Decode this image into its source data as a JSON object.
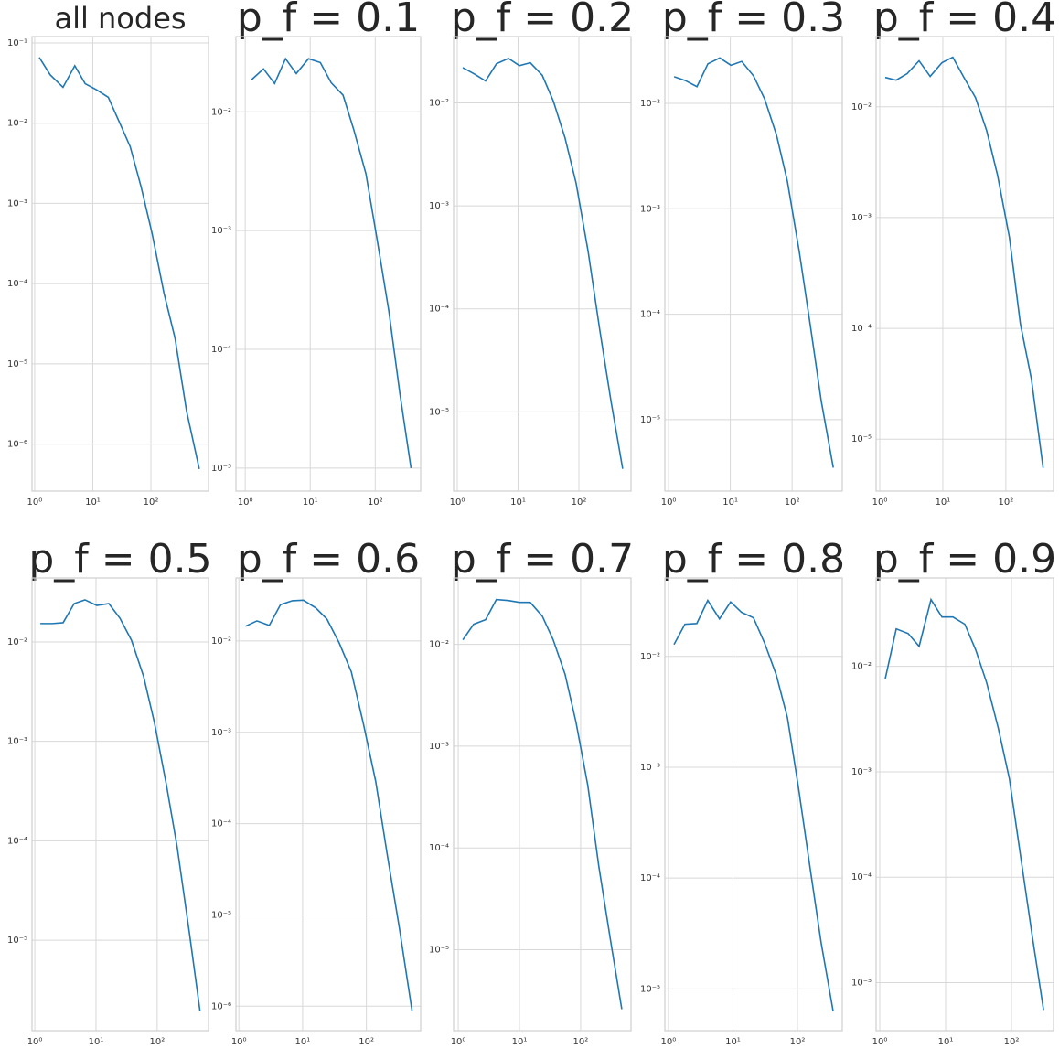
{
  "chart_data": [
    {
      "type": "line",
      "title": "all nodes",
      "xscale": "log",
      "yscale": "log",
      "grid": true,
      "color": "#1f77b4",
      "x": [
        1.2,
        1.85,
        3.07,
        4.9,
        7.4,
        11.7,
        18.5,
        28,
        44,
        68,
        105,
        168,
        260,
        410,
        680
      ],
      "values": [
        0.066,
        0.04,
        0.028,
        0.052,
        0.031,
        0.026,
        0.021,
        0.0107,
        0.0051,
        0.0016,
        0.00042,
        7.6e-05,
        2.1e-05,
        2.6e-06,
        4.9e-07
      ],
      "xlim": [
        0.9,
        980
      ],
      "ylim": [
        0.12,
        2.6e-07
      ],
      "xticks": [
        {
          "value": 1,
          "label": "10⁰"
        },
        {
          "value": 10,
          "label": "10¹"
        },
        {
          "value": 100,
          "label": "10²"
        }
      ],
      "yticks": [
        {
          "value": 0.1,
          "label": "10⁻¹"
        },
        {
          "value": 0.01,
          "label": "10⁻²"
        },
        {
          "value": 0.001,
          "label": "10⁻³"
        },
        {
          "value": 0.0001,
          "label": "10⁻⁴"
        },
        {
          "value": 1e-05,
          "label": "10⁻⁵"
        },
        {
          "value": 1e-06,
          "label": "10⁻⁶"
        }
      ]
    },
    {
      "type": "line",
      "title": "p_f = 0.1",
      "xscale": "log",
      "yscale": "log",
      "grid": true,
      "color": "#1f77b4",
      "x": [
        1.25,
        1.91,
        2.83,
        4.17,
        6.1,
        9.4,
        14.3,
        21,
        32,
        47,
        72,
        105,
        162,
        240,
        355
      ],
      "values": [
        0.0186,
        0.023,
        0.0173,
        0.028,
        0.021,
        0.028,
        0.026,
        0.0176,
        0.0138,
        0.007,
        0.003,
        0.00089,
        0.00021,
        4.2e-05,
        1e-05
      ],
      "xlim": [
        0.72,
        500
      ],
      "ylim": [
        0.043,
        6.4e-06
      ],
      "xticks": [
        {
          "value": 1,
          "label": "10⁰"
        },
        {
          "value": 10,
          "label": "10¹"
        },
        {
          "value": 100,
          "label": "10²"
        }
      ],
      "yticks": [
        {
          "value": 0.01,
          "label": "10⁻²"
        },
        {
          "value": 0.001,
          "label": "10⁻³"
        },
        {
          "value": 0.0001,
          "label": "10⁻⁴"
        },
        {
          "value": 1e-05,
          "label": "10⁻⁵"
        }
      ]
    },
    {
      "type": "line",
      "title": "p_f = 0.2",
      "xscale": "log",
      "yscale": "log",
      "grid": true,
      "color": "#1f77b4",
      "x": [
        1.23,
        1.93,
        2.92,
        4.42,
        6.95,
        10.5,
        15.9,
        25,
        38,
        59,
        90,
        142,
        220,
        335,
        525
      ],
      "values": [
        0.022,
        0.019,
        0.0163,
        0.024,
        0.027,
        0.023,
        0.0245,
        0.0185,
        0.0104,
        0.0046,
        0.00166,
        0.00036,
        6.3e-05,
        1.3e-05,
        2.8e-06
      ],
      "xlim": [
        0.87,
        720
      ],
      "ylim": [
        0.044,
        1.7e-06
      ],
      "xticks": [
        {
          "value": 1,
          "label": "10⁰"
        },
        {
          "value": 10,
          "label": "10¹"
        },
        {
          "value": 100,
          "label": "10²"
        }
      ],
      "yticks": [
        {
          "value": 0.01,
          "label": "10⁻²"
        },
        {
          "value": 0.001,
          "label": "10⁻³"
        },
        {
          "value": 0.0001,
          "label": "10⁻⁴"
        },
        {
          "value": 1e-05,
          "label": "10⁻⁵"
        }
      ]
    },
    {
      "type": "line",
      "title": "p_f = 0.3",
      "xscale": "log",
      "yscale": "log",
      "grid": true,
      "color": "#1f77b4",
      "x": [
        1.23,
        1.85,
        2.88,
        4.33,
        6.75,
        10.2,
        15.3,
        23.8,
        36,
        56,
        84,
        131,
        197,
        297,
        465
      ],
      "values": [
        0.0179,
        0.0165,
        0.0144,
        0.0237,
        0.027,
        0.023,
        0.025,
        0.0182,
        0.011,
        0.005,
        0.00182,
        0.00039,
        7.9e-05,
        1.5e-05,
        3.5e-06
      ],
      "xlim": [
        0.87,
        650
      ],
      "ylim": [
        0.043,
        2.1e-06
      ],
      "xticks": [
        {
          "value": 1,
          "label": "10⁰"
        },
        {
          "value": 10,
          "label": "10¹"
        },
        {
          "value": 100,
          "label": "10²"
        }
      ],
      "yticks": [
        {
          "value": 0.01,
          "label": "10⁻²"
        },
        {
          "value": 0.001,
          "label": "10⁻³"
        },
        {
          "value": 0.0001,
          "label": "10⁻⁴"
        },
        {
          "value": 1e-05,
          "label": "10⁻⁵"
        }
      ]
    },
    {
      "type": "line",
      "title": "p_f = 0.4",
      "xscale": "log",
      "yscale": "log",
      "grid": true,
      "color": "#1f77b4",
      "x": [
        1.22,
        1.82,
        2.72,
        4.2,
        6.3,
        9.7,
        14.4,
        21.6,
        33,
        49.6,
        74,
        114,
        170,
        254,
        390
      ],
      "values": [
        0.0184,
        0.0174,
        0.0199,
        0.026,
        0.0188,
        0.025,
        0.028,
        0.0184,
        0.0121,
        0.0061,
        0.0024,
        0.00066,
        0.00011,
        3.5e-05,
        5.5e-06
      ],
      "xlim": [
        0.875,
        570
      ],
      "ylim": [
        0.043,
        3.4e-06
      ],
      "xticks": [
        {
          "value": 1,
          "label": "10⁰"
        },
        {
          "value": 10,
          "label": "10¹"
        },
        {
          "value": 100,
          "label": "10²"
        }
      ],
      "yticks": [
        {
          "value": 0.01,
          "label": "10⁻²"
        },
        {
          "value": 0.001,
          "label": "10⁻³"
        },
        {
          "value": 0.0001,
          "label": "10⁻⁴"
        },
        {
          "value": 1e-05,
          "label": "10⁻⁵"
        }
      ]
    },
    {
      "type": "line",
      "title": "p_f = 0.5",
      "xscale": "log",
      "yscale": "log",
      "grid": true,
      "color": "#1f77b4",
      "x": [
        1.23,
        1.92,
        2.9,
        4.4,
        6.6,
        10.3,
        16.2,
        24.5,
        38,
        60,
        90,
        141,
        212,
        333,
        500
      ],
      "values": [
        0.0153,
        0.0153,
        0.0156,
        0.0243,
        0.0265,
        0.0233,
        0.0243,
        0.0174,
        0.0104,
        0.0045,
        0.00155,
        0.00037,
        8.7e-05,
        1.23e-05,
        1.95e-06
      ],
      "xlim": [
        0.9,
        690
      ],
      "ylim": [
        0.044,
        1.23e-06
      ],
      "xticks": [
        {
          "value": 1,
          "label": "10⁰"
        },
        {
          "value": 10,
          "label": "10¹"
        },
        {
          "value": 100,
          "label": "10²"
        }
      ],
      "yticks": [
        {
          "value": 0.01,
          "label": "10⁻²"
        },
        {
          "value": 0.001,
          "label": "10⁻³"
        },
        {
          "value": 0.0001,
          "label": "10⁻⁴"
        },
        {
          "value": 1e-05,
          "label": "10⁻⁵"
        }
      ]
    },
    {
      "type": "line",
      "title": "p_f = 0.6",
      "xscale": "log",
      "yscale": "log",
      "grid": true,
      "color": "#1f77b4",
      "x": [
        1.27,
        1.92,
        3.0,
        4.5,
        6.9,
        10.3,
        16.1,
        24,
        37.5,
        58,
        90,
        140,
        212,
        330,
        520
      ],
      "values": [
        0.0145,
        0.0166,
        0.0148,
        0.025,
        0.0276,
        0.028,
        0.023,
        0.0174,
        0.0095,
        0.0046,
        0.00123,
        0.00029,
        4.6e-05,
        7.1e-06,
        8.9e-07
      ],
      "xlim": [
        0.9,
        710
      ],
      "ylim": [
        0.049,
        5.4e-07
      ],
      "xticks": [
        {
          "value": 1,
          "label": "10⁰"
        },
        {
          "value": 10,
          "label": "10¹"
        },
        {
          "value": 100,
          "label": "10²"
        }
      ],
      "yticks": [
        {
          "value": 0.01,
          "label": "10⁻²"
        },
        {
          "value": 0.001,
          "label": "10⁻³"
        },
        {
          "value": 0.0001,
          "label": "10⁻⁴"
        },
        {
          "value": 1e-05,
          "label": "10⁻⁵"
        },
        {
          "value": 1e-06,
          "label": "10⁻⁶"
        }
      ]
    },
    {
      "type": "line",
      "title": "p_f = 0.7",
      "xscale": "log",
      "yscale": "log",
      "grid": true,
      "color": "#1f77b4",
      "x": [
        1.19,
        1.79,
        2.8,
        4.2,
        6.6,
        10,
        15,
        23.6,
        35.6,
        55.6,
        84,
        131,
        198,
        310,
        470
      ],
      "values": [
        0.0111,
        0.0158,
        0.0175,
        0.0276,
        0.027,
        0.0259,
        0.0259,
        0.019,
        0.0111,
        0.0051,
        0.00172,
        0.00041,
        6.6e-05,
        1.2e-05,
        2.6e-06
      ],
      "xlim": [
        0.84,
        665
      ],
      "ylim": [
        0.045,
        1.6e-06
      ],
      "xticks": [
        {
          "value": 1,
          "label": "10⁰"
        },
        {
          "value": 10,
          "label": "10¹"
        },
        {
          "value": 100,
          "label": "10²"
        }
      ],
      "yticks": [
        {
          "value": 0.01,
          "label": "10⁻²"
        },
        {
          "value": 0.001,
          "label": "10⁻³"
        },
        {
          "value": 0.0001,
          "label": "10⁻⁴"
        },
        {
          "value": 1e-05,
          "label": "10⁻⁵"
        }
      ]
    },
    {
      "type": "line",
      "title": "p_f = 0.8",
      "xscale": "log",
      "yscale": "log",
      "grid": true,
      "color": "#1f77b4",
      "x": [
        1.22,
        1.8,
        2.75,
        4.07,
        6.2,
        9.2,
        13.6,
        20.8,
        30.8,
        47,
        70,
        103,
        158,
        233,
        357
      ],
      "values": [
        0.0128,
        0.0195,
        0.0198,
        0.032,
        0.0218,
        0.031,
        0.025,
        0.0223,
        0.0133,
        0.0068,
        0.0028,
        0.00067,
        0.00012,
        2.6e-05,
        6.3e-06
      ],
      "xlim": [
        0.88,
        495
      ],
      "ylim": [
        0.051,
        4.2e-06
      ],
      "xticks": [
        {
          "value": 1,
          "label": "10⁰"
        },
        {
          "value": 10,
          "label": "10¹"
        },
        {
          "value": 100,
          "label": "10²"
        }
      ],
      "yticks": [
        {
          "value": 0.01,
          "label": "10⁻²"
        },
        {
          "value": 0.001,
          "label": "10⁻³"
        },
        {
          "value": 0.0001,
          "label": "10⁻⁴"
        },
        {
          "value": 1e-05,
          "label": "10⁻⁵"
        }
      ]
    },
    {
      "type": "line",
      "title": "p_f = 0.9",
      "xscale": "log",
      "yscale": "log",
      "grid": true,
      "color": "#1f77b4",
      "x": [
        1.21,
        1.78,
        2.7,
        3.96,
        6.0,
        8.8,
        12.9,
        19.6,
        28.7,
        42,
        63,
        93,
        142,
        208,
        307
      ],
      "values": [
        0.0076,
        0.0227,
        0.0205,
        0.0155,
        0.043,
        0.0294,
        0.0294,
        0.0251,
        0.0143,
        0.007,
        0.0026,
        0.00086,
        0.000138,
        2.7e-05,
        5.5e-06
      ],
      "xlim": [
        0.88,
        435
      ],
      "ylim": [
        0.069,
        3.5e-06
      ],
      "xticks": [
        {
          "value": 1,
          "label": "10⁰"
        },
        {
          "value": 10,
          "label": "10¹"
        },
        {
          "value": 100,
          "label": "10²"
        }
      ],
      "yticks": [
        {
          "value": 0.01,
          "label": "10⁻²"
        },
        {
          "value": 0.001,
          "label": "10⁻³"
        },
        {
          "value": 0.0001,
          "label": "10⁻⁴"
        },
        {
          "value": 1e-05,
          "label": "10⁻⁵"
        }
      ]
    }
  ]
}
